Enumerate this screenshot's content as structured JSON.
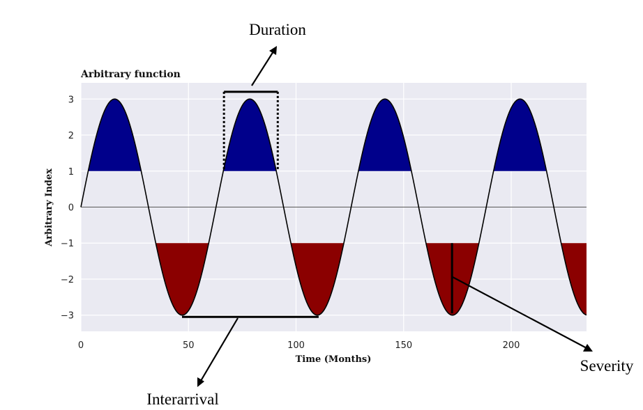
{
  "chart_data": {
    "type": "area",
    "title": "Arbitrary function",
    "xlabel": "Time (Months)",
    "ylabel": "Arbitrary Index",
    "xlim": [
      0,
      235
    ],
    "ylim": [
      -3.45,
      3.45
    ],
    "xticks": [
      0,
      50,
      100,
      150,
      200
    ],
    "yticks": [
      3,
      2,
      1,
      0,
      -1,
      -2,
      -3
    ],
    "grid": true,
    "function": {
      "form": "amplitude * sin(2*pi*x/period)",
      "amplitude": 3,
      "period": 62.8
    },
    "upper_threshold": 1,
    "lower_threshold": -1,
    "fill_above_color": "#00008b",
    "fill_below_color": "#8b0000",
    "line_color": "#000000",
    "background_color": "#eaeaf2",
    "zero_line": true
  },
  "annotations": {
    "duration": "Duration",
    "interarrival": "Interarrival",
    "severity": "Severity"
  }
}
